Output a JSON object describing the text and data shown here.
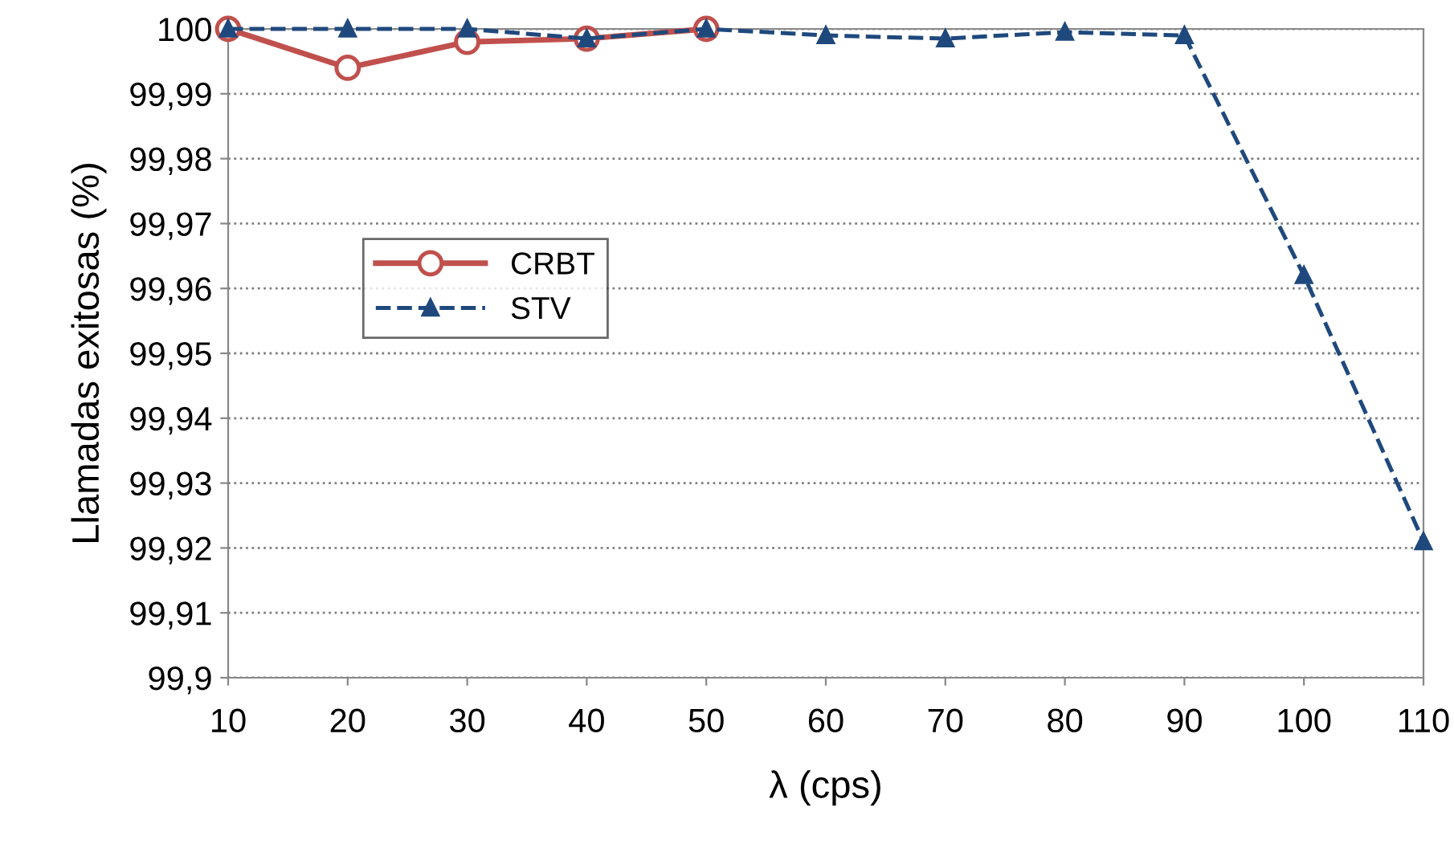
{
  "chart_data": {
    "type": "line",
    "xlabel": "λ (cps)",
    "ylabel": "Llamadas exitosas (%)",
    "x": [
      10,
      20,
      30,
      40,
      50,
      60,
      70,
      80,
      90,
      100,
      110
    ],
    "series": [
      {
        "name": "CRBT",
        "color": "#c0504d",
        "marker": "circle",
        "line_style": "solid",
        "values": [
          100,
          99.994,
          99.998,
          99.9985,
          100,
          null,
          null,
          null,
          null,
          null,
          null
        ]
      },
      {
        "name": "STV",
        "color": "#1f497d",
        "marker": "triangle",
        "line_style": "dashed",
        "values": [
          100,
          100,
          100,
          99.9985,
          100,
          99.999,
          99.9985,
          99.9995,
          99.999,
          99.962,
          99.921
        ]
      }
    ],
    "xlim": [
      10,
      110
    ],
    "xticks": [
      10,
      20,
      30,
      40,
      50,
      60,
      70,
      80,
      90,
      100,
      110
    ],
    "ylim": [
      99.9,
      100
    ],
    "yticks": [
      {
        "value": 99.9,
        "label": "99,9"
      },
      {
        "value": 99.91,
        "label": "99,91"
      },
      {
        "value": 99.92,
        "label": "99,92"
      },
      {
        "value": 99.93,
        "label": "99,93"
      },
      {
        "value": 99.94,
        "label": "99,94"
      },
      {
        "value": 99.95,
        "label": "99,95"
      },
      {
        "value": 99.96,
        "label": "99,96"
      },
      {
        "value": 99.97,
        "label": "99,97"
      },
      {
        "value": 99.98,
        "label": "99,98"
      },
      {
        "value": 99.99,
        "label": "99,99"
      },
      {
        "value": 100,
        "label": "100"
      }
    ],
    "grid": "y",
    "legend": "left"
  }
}
